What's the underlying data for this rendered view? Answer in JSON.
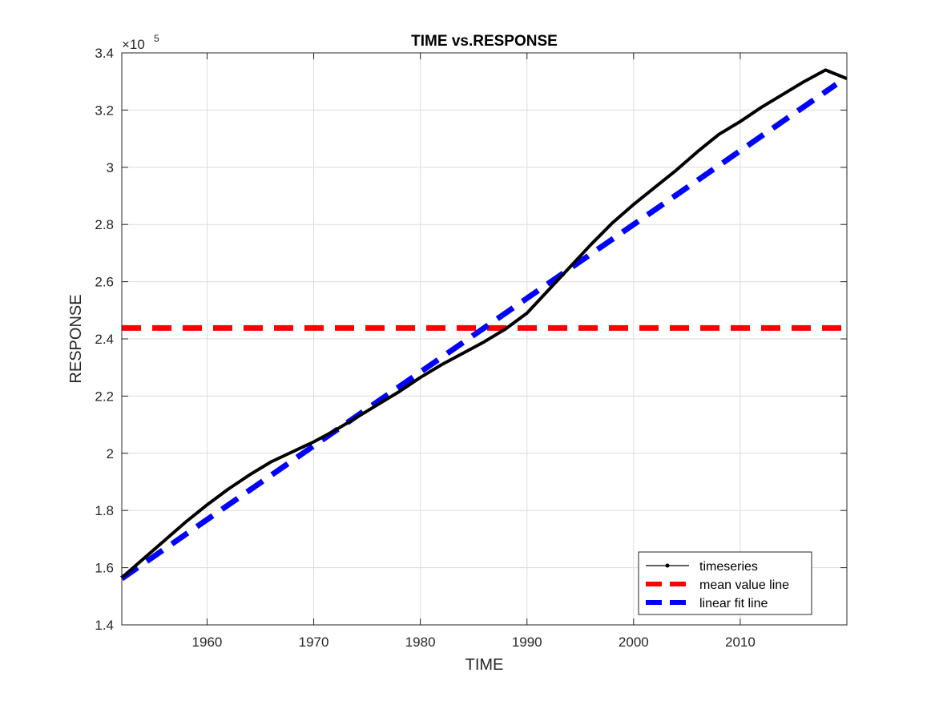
{
  "chart_data": {
    "type": "line",
    "title": "TIME vs.RESPONSE",
    "xlabel": "TIME",
    "ylabel": "RESPONSE",
    "xlim": [
      1952,
      2020
    ],
    "ylim": [
      140000,
      340000
    ],
    "y_exponent_label": "×10",
    "y_exponent_power": "5",
    "y_tick_scale": 100000,
    "x_ticks": [
      1960,
      1970,
      1980,
      1990,
      2000,
      2010
    ],
    "x_tick_labels": [
      "1960",
      "1970",
      "1980",
      "1990",
      "2000",
      "2010"
    ],
    "y_ticks": [
      140000,
      160000,
      180000,
      200000,
      220000,
      240000,
      260000,
      280000,
      300000,
      320000,
      340000
    ],
    "y_tick_labels": [
      "1.4",
      "1.6",
      "1.8",
      "2",
      "2.2",
      "2.4",
      "2.6",
      "2.8",
      "3",
      "3.2",
      "3.4"
    ],
    "grid": true,
    "legend_position": "bottom-right",
    "series": [
      {
        "name": "timeseries",
        "color": "#000000",
        "style": "solid",
        "x": [
          1952,
          1954,
          1956,
          1958,
          1960,
          1962,
          1964,
          1966,
          1968,
          1970,
          1972,
          1974,
          1976,
          1978,
          1980,
          1982,
          1984,
          1986,
          1988,
          1990,
          1992,
          1994,
          1996,
          1998,
          2000,
          2002,
          2004,
          2006,
          2008,
          2010,
          2012,
          2014,
          2016,
          2018,
          2020
        ],
        "y": [
          156500,
          163000,
          169500,
          176000,
          182000,
          187500,
          192500,
          197000,
          200500,
          204000,
          208000,
          212500,
          217000,
          221500,
          226500,
          231000,
          235000,
          239000,
          243500,
          249000,
          257000,
          265000,
          273000,
          280500,
          287000,
          293000,
          299000,
          305500,
          311500,
          316000,
          321000,
          325500,
          330000,
          334000,
          331000
        ]
      },
      {
        "name": "mean value line",
        "color": "#ff0000",
        "style": "dashed",
        "x": [
          1952,
          2020
        ],
        "y": [
          243800,
          243800
        ]
      },
      {
        "name": "linear fit line",
        "color": "#0000ff",
        "style": "dashed",
        "x": [
          1952,
          2019
        ],
        "y": [
          156200,
          329000
        ]
      }
    ]
  }
}
